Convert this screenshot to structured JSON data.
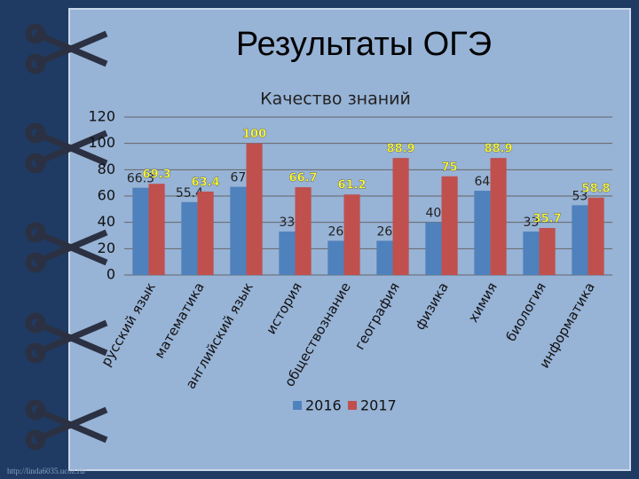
{
  "slide": {
    "title": "Результаты ОГЭ",
    "footer": "http://linda6035.ucoz.ru/"
  },
  "chart_data": {
    "type": "bar",
    "title": "Качество знаний",
    "categories": [
      "русский язык",
      "математика",
      "английский язык",
      "история",
      "обществознание",
      "география",
      "физика",
      "химия",
      "биология",
      "информатика"
    ],
    "series": [
      {
        "name": "2016",
        "color": "#4f81bd",
        "values": [
          66.3,
          55.4,
          67,
          33,
          26,
          26,
          40,
          64,
          33,
          53
        ]
      },
      {
        "name": "2017",
        "color": "#c0504d",
        "values": [
          69.3,
          63.4,
          100,
          66.7,
          61.2,
          88.9,
          75,
          88.9,
          35.7,
          58.8
        ]
      }
    ],
    "ylim": [
      0,
      120
    ],
    "yticks": [
      0,
      20,
      40,
      60,
      80,
      100,
      120
    ],
    "grid": true,
    "legend": "bottom"
  }
}
